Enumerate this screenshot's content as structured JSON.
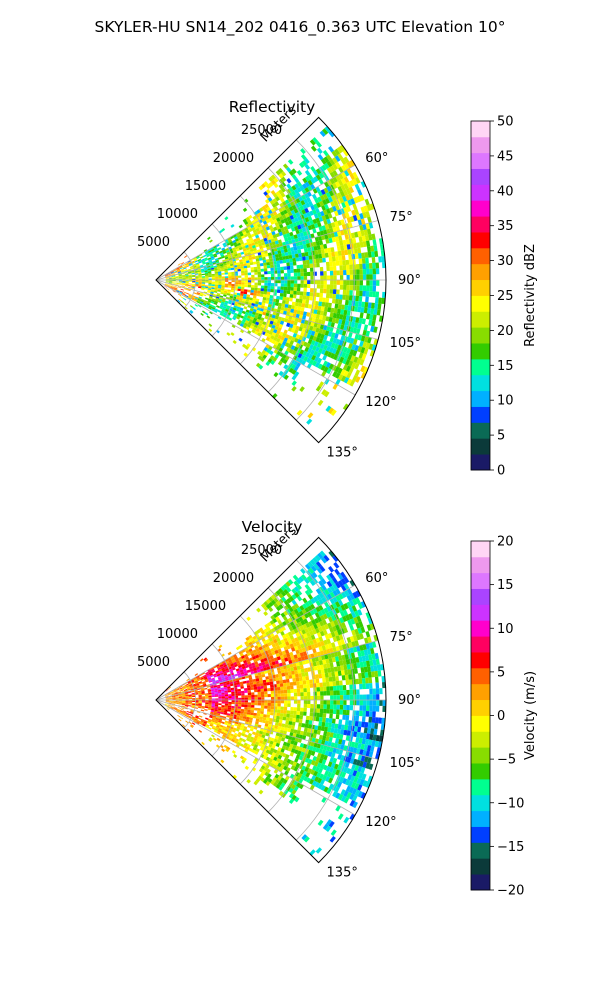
{
  "figure": {
    "title": "SKYLER-HU  SN14_202  0416_0.363 UTC Elevation 10°"
  },
  "chart_data": [
    {
      "type": "heatmap",
      "subtype": "polar-sector-ppi",
      "title": "Reflectivity",
      "radial_label": "Meters",
      "radial_ticks": [
        5000,
        10000,
        15000,
        20000,
        25000
      ],
      "radial_tick_labels": [
        "5000",
        "10000",
        "15000",
        "20000",
        "25000"
      ],
      "r_max": 29000,
      "theta_range_deg": [
        45,
        135
      ],
      "theta_ticks": [
        60,
        75,
        90,
        105,
        120,
        135
      ],
      "theta_tick_labels": [
        "60°",
        "75°",
        "90°",
        "105°",
        "120°",
        "135°"
      ],
      "grid": true,
      "colorbar": {
        "label": "Reflectivity dBZ",
        "range": [
          0,
          50
        ],
        "ticks": [
          0,
          5,
          10,
          15,
          20,
          25,
          30,
          35,
          40,
          45,
          50
        ],
        "tick_labels": [
          "0",
          "5",
          "10",
          "15",
          "20",
          "25",
          "30",
          "35",
          "40",
          "45",
          "50"
        ],
        "colors": [
          "#1a1a66",
          "#0b3a3a",
          "#0a6a55",
          "#003fff",
          "#00b0ff",
          "#00e0e0",
          "#00ff90",
          "#33cc00",
          "#88dd00",
          "#ccee00",
          "#ffff00",
          "#ffd000",
          "#ffa000",
          "#ff6000",
          "#ff0000",
          "#ff0060",
          "#ff00cc",
          "#cc33ff",
          "#aa44ff",
          "#dd77ff",
          "#ee99ee",
          "#ffd6f5"
        ]
      }
    },
    {
      "type": "heatmap",
      "subtype": "polar-sector-ppi",
      "title": "Velocity",
      "radial_label": "Meters",
      "radial_ticks": [
        5000,
        10000,
        15000,
        20000,
        25000
      ],
      "radial_tick_labels": [
        "5000",
        "10000",
        "15000",
        "20000",
        "25000"
      ],
      "r_max": 29000,
      "theta_range_deg": [
        45,
        135
      ],
      "theta_ticks": [
        60,
        75,
        90,
        105,
        120,
        135
      ],
      "theta_tick_labels": [
        "60°",
        "75°",
        "90°",
        "105°",
        "120°",
        "135°"
      ],
      "grid": true,
      "colorbar": {
        "label": "Velocity (m/s)",
        "range": [
          -20,
          20
        ],
        "ticks": [
          -20,
          -15,
          -10,
          -5,
          0,
          5,
          10,
          15,
          20
        ],
        "tick_labels": [
          "−20",
          "−15",
          "−10",
          "−5",
          "0",
          "5",
          "10",
          "15",
          "20"
        ],
        "colors": [
          "#1a1a66",
          "#0b3a3a",
          "#0a6a55",
          "#003fff",
          "#00b0ff",
          "#00e0e0",
          "#00ff90",
          "#33cc00",
          "#88dd00",
          "#ccee00",
          "#ffff00",
          "#ffd000",
          "#ffa000",
          "#ff6000",
          "#ff0000",
          "#ff0060",
          "#ff00cc",
          "#cc33ff",
          "#aa44ff",
          "#dd77ff",
          "#ee99ee",
          "#ffd6f5"
        ]
      }
    }
  ]
}
